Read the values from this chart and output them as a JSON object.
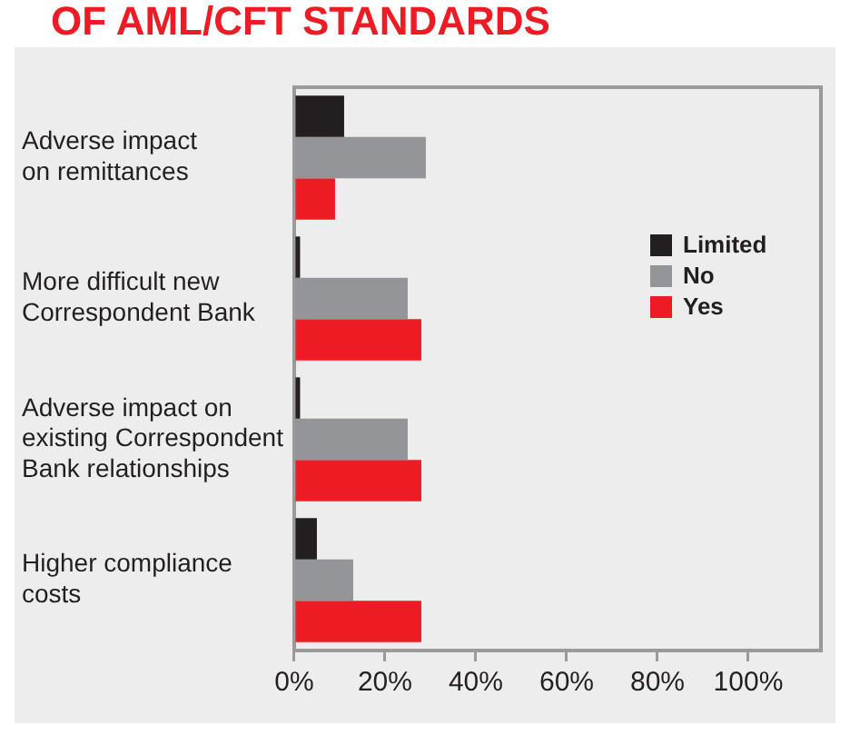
{
  "chart_data": {
    "type": "bar",
    "orientation": "horizontal",
    "title": "OF AML/CFT STANDARDS",
    "categories": [
      "Adverse impact\non remittances",
      "More difficult new\nCorrespondent Bank",
      "Adverse impact on\nexisting Correspondent\nBank relationships",
      "Higher compliance\ncosts"
    ],
    "series": [
      {
        "name": "Limited",
        "color": "#231f20",
        "values": [
          11,
          1.3,
          1.3,
          5
        ]
      },
      {
        "name": "No",
        "color": "#939598",
        "values": [
          29,
          25,
          25,
          13
        ]
      },
      {
        "name": "Yes",
        "color": "#ed1c24",
        "values": [
          9,
          28,
          28,
          28
        ]
      }
    ],
    "xlim": [
      0,
      116
    ],
    "xticks": [
      {
        "value": 0,
        "label": "0%"
      },
      {
        "value": 20,
        "label": "20%"
      },
      {
        "value": 40,
        "label": "40%"
      },
      {
        "value": 60,
        "label": "60%"
      },
      {
        "value": 80,
        "label": "80%"
      },
      {
        "value": 100,
        "label": "100%"
      }
    ],
    "grid": false,
    "legend": "right"
  }
}
